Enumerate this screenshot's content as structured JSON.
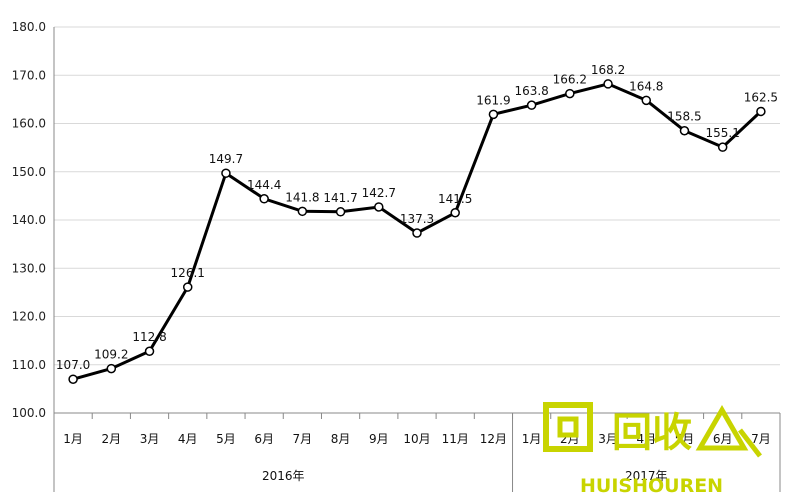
{
  "chart_data": {
    "type": "line",
    "categories": [
      "1月",
      "2月",
      "3月",
      "4月",
      "5月",
      "6月",
      "7月",
      "8月",
      "9月",
      "10月",
      "11月",
      "12月",
      "1月",
      "2月",
      "3月",
      "4月",
      "5月",
      "6月",
      "7月"
    ],
    "groups": [
      {
        "label": "2016年",
        "count": 12
      },
      {
        "label": "2017年",
        "count": 7
      }
    ],
    "series": [
      {
        "values": [
          107.0,
          109.2,
          112.8,
          126.1,
          149.7,
          144.4,
          141.8,
          141.7,
          142.7,
          137.3,
          141.5,
          161.9,
          163.8,
          166.2,
          168.2,
          164.8,
          158.5,
          155.1,
          162.5
        ]
      }
    ],
    "data_labels": [
      "107.0",
      "109.2",
      "112.8",
      "126.1",
      "149.7",
      "144.4",
      "141.8",
      "141.7",
      "142.7",
      "137.3",
      "141.5",
      "161.9",
      "163.8",
      "166.2",
      "168.2",
      "164.8",
      "158.5",
      "155.1",
      "162.5"
    ],
    "ylim": [
      100,
      180
    ],
    "yticks": [
      "100.0",
      "110.0",
      "120.0",
      "130.0",
      "140.0",
      "150.0",
      "160.0",
      "170.0",
      "180.0"
    ],
    "ytick_values": [
      100,
      110,
      120,
      130,
      140,
      150,
      160,
      170,
      180
    ],
    "grid": true,
    "colors": {
      "line": "#000000",
      "grid": "#d9d9d9",
      "watermark": "#c8d400"
    }
  },
  "watermark": {
    "main_text": "回收",
    "sub_text": "HUISHOUREN",
    "icon": "recycle-mountain-icon"
  }
}
